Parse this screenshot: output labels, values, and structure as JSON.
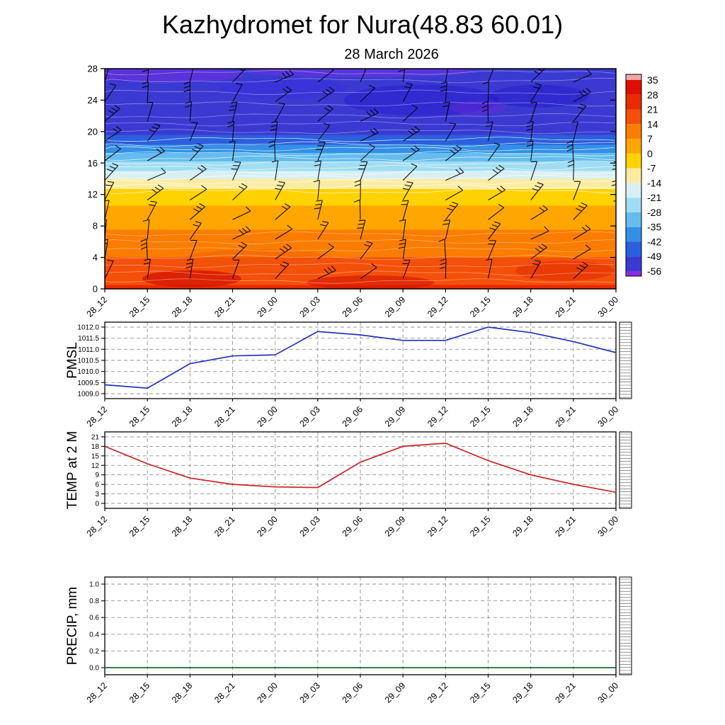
{
  "title": "Kazhydromet for Nura(48.83 60.01)",
  "subtitle": "28 March 2026",
  "time_labels": [
    "28_12",
    "28_15",
    "28_18",
    "28_21",
    "29_00",
    "29_03",
    "29_06",
    "29_09",
    "29_12",
    "29_15",
    "29_18",
    "29_21",
    "30_00"
  ],
  "colorbar": {
    "tick_labels": [
      35,
      28,
      21,
      14,
      7,
      0,
      -7,
      -14,
      -21,
      -28,
      -35,
      -42,
      -49,
      -56
    ],
    "colors_top_to_bottom": [
      "#f2a6a6",
      "#dc0f00",
      "#ea2a00",
      "#f4500a",
      "#fb7d00",
      "#ffa600",
      "#ffd200",
      "#fceca2",
      "#d8f0f4",
      "#a0ddf2",
      "#64bdee",
      "#3390e6",
      "#2b5fdd",
      "#3a3ad2",
      "#8a2be2"
    ]
  },
  "chart_data": [
    {
      "type": "heatmap",
      "name": "temperature-cross-section",
      "title": "28 March 2026",
      "description": "Time-height temperature cross-section (shaded, deg C) with wind barbs and white contour lines",
      "x": [
        "28_12",
        "28_15",
        "28_18",
        "28_21",
        "29_00",
        "29_03",
        "29_06",
        "29_09",
        "29_12",
        "29_15",
        "29_18",
        "29_21",
        "30_00"
      ],
      "yticks": [
        28,
        24,
        20,
        16,
        12,
        8,
        4,
        0
      ],
      "ylim": [
        0,
        28
      ],
      "height_temp_profile": [
        {
          "h": 0,
          "t": 22
        },
        {
          "h": 1.5,
          "t": 19
        },
        {
          "h": 3,
          "t": 16
        },
        {
          "h": 5,
          "t": 12
        },
        {
          "h": 7,
          "t": 8
        },
        {
          "h": 9,
          "t": 4
        },
        {
          "h": 11,
          "t": -1
        },
        {
          "h": 12.5,
          "t": -6
        },
        {
          "h": 13.3,
          "t": -9
        },
        {
          "h": 14.2,
          "t": -15
        },
        {
          "h": 15.2,
          "t": -22
        },
        {
          "h": 16.2,
          "t": -28
        },
        {
          "h": 17.2,
          "t": -34
        },
        {
          "h": 18,
          "t": -40
        },
        {
          "h": 19,
          "t": -46
        },
        {
          "h": 20,
          "t": -51
        },
        {
          "h": 22,
          "t": -53.5
        },
        {
          "h": 28,
          "t": -54.5
        }
      ],
      "overlay": "wind barbs (speed/direction not legible at this scale)"
    },
    {
      "type": "line",
      "name": "PMSL",
      "color": "#2233bb",
      "x": [
        "28_12",
        "28_15",
        "28_18",
        "28_21",
        "29_00",
        "29_03",
        "29_06",
        "29_09",
        "29_12",
        "29_15",
        "29_18",
        "29_21",
        "30_00"
      ],
      "values": [
        1009.4,
        1009.25,
        1010.35,
        1010.7,
        1010.75,
        1011.8,
        1011.65,
        1011.4,
        1011.4,
        1012.0,
        1011.75,
        1011.35,
        1010.85
      ],
      "ylim": [
        1009.0,
        1012.0
      ],
      "yticks": [
        1012.0,
        1011.5,
        1011.0,
        1010.5,
        1010.0,
        1009.5,
        1009.0
      ],
      "ytick_decimals": 1
    },
    {
      "type": "line",
      "name": "TEMP at 2 M",
      "color": "#cc2222",
      "x": [
        "28_12",
        "28_15",
        "28_18",
        "28_21",
        "29_00",
        "29_03",
        "29_06",
        "29_09",
        "29_12",
        "29_15",
        "29_18",
        "29_21",
        "30_00"
      ],
      "values": [
        18,
        12.5,
        8,
        6,
        5.2,
        5,
        13,
        18,
        19,
        13.5,
        9,
        6,
        3.5
      ],
      "ylim": [
        0,
        21
      ],
      "yticks": [
        21,
        18,
        15,
        12,
        9,
        6,
        3,
        0
      ],
      "ytick_decimals": 0
    },
    {
      "type": "line",
      "name": "PRECIP, mm",
      "color": "#156b2a",
      "x": [
        "28_12",
        "28_15",
        "28_18",
        "28_21",
        "29_00",
        "29_03",
        "29_06",
        "29_09",
        "29_12",
        "29_15",
        "29_18",
        "29_21",
        "30_00"
      ],
      "values": [
        0,
        0,
        0,
        0,
        0,
        0,
        0,
        0,
        0,
        0,
        0,
        0,
        0
      ],
      "ylim": [
        0,
        1.0
      ],
      "yticks": [
        1.0,
        0.8,
        0.6,
        0.4,
        0.2,
        0.0
      ],
      "ytick_decimals": 1
    }
  ]
}
